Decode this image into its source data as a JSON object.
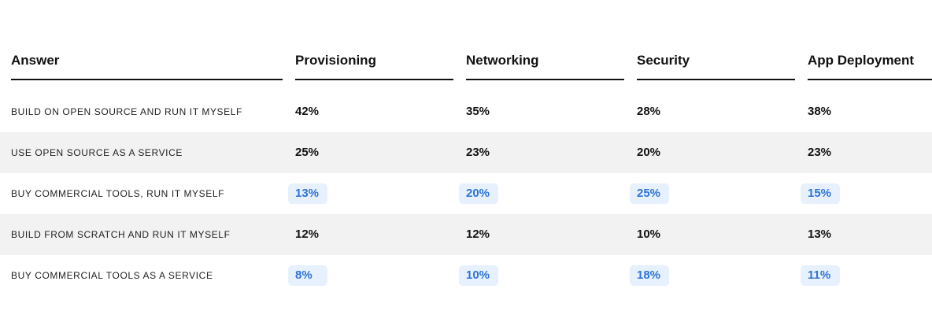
{
  "chart_data": {
    "type": "table",
    "columns": [
      "Answer",
      "Provisioning",
      "Networking",
      "Security",
      "App Deployment"
    ],
    "rows": [
      {
        "label": "BUILD ON OPEN SOURCE AND RUN IT MYSELF",
        "values": [
          "42%",
          "35%",
          "28%",
          "38%"
        ],
        "highlight": false
      },
      {
        "label": "USE OPEN SOURCE AS A SERVICE",
        "values": [
          "25%",
          "23%",
          "20%",
          "23%"
        ],
        "highlight": false
      },
      {
        "label": "BUY COMMERCIAL TOOLS, RUN IT MYSELF",
        "values": [
          "13%",
          "20%",
          "25%",
          "15%"
        ],
        "highlight": true
      },
      {
        "label": "BUILD FROM SCRATCH AND RUN IT MYSELF",
        "values": [
          "12%",
          "12%",
          "10%",
          "13%"
        ],
        "highlight": false
      },
      {
        "label": "BUY COMMERCIAL TOOLS AS A SERVICE",
        "values": [
          "8%",
          "10%",
          "18%",
          "11%"
        ],
        "highlight": true
      }
    ],
    "colors": {
      "highlight_text": "#2f74d6",
      "highlight_bg": "#e6f1fd",
      "alt_row_bg": "#f2f2f2"
    }
  }
}
